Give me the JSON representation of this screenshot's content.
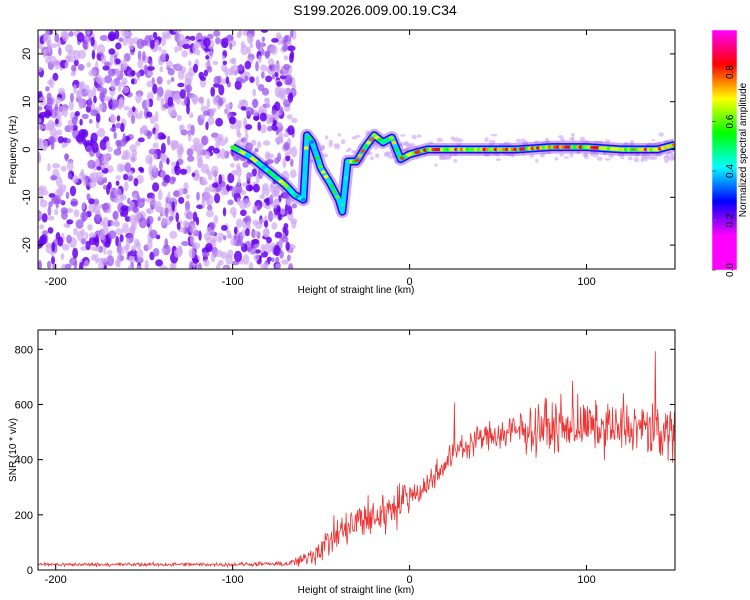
{
  "figure": {
    "title": "S199.2026.009.00.19.C34"
  },
  "chart_data": [
    {
      "type": "heatmap",
      "xlabel": "Height of straight line (km)",
      "ylabel": "Frequency (Hz)",
      "xlim": [
        -210,
        150
      ],
      "ylim": [
        -25,
        25
      ],
      "xticks": [
        -200,
        -100,
        0,
        100
      ],
      "yticks": [
        -20,
        -10,
        0,
        10,
        20
      ],
      "grid": false,
      "colorbar": {
        "label": "Normalized spectral amplitude",
        "range": [
          0,
          0.97
        ],
        "ticks": [
          0.0,
          0.2,
          0.4,
          0.6,
          0.8
        ],
        "colormap": [
          "#ff00ff",
          "#ff00ff",
          "#0000ff",
          "#00ffff",
          "#00ff00",
          "#ffff00",
          "#ff0000",
          "#ff00ff"
        ]
      },
      "ridge": {
        "x": [
          -100,
          -90,
          -80,
          -70,
          -65,
          -60,
          -58,
          -55,
          -50,
          -45,
          -40,
          -38,
          -35,
          -30,
          -25,
          -20,
          -15,
          -10,
          -5,
          0,
          10,
          20,
          40,
          60,
          80,
          100,
          120,
          140,
          150
        ],
        "y": [
          0.5,
          -1.5,
          -4.5,
          -7.5,
          -9.5,
          -10.5,
          3.0,
          1.5,
          -4.0,
          -7.0,
          -10.5,
          -13.0,
          -2.5,
          -2.5,
          0.5,
          3.0,
          1.5,
          2.5,
          -2.0,
          -1.0,
          0.0,
          0.0,
          0.0,
          0.0,
          0.5,
          0.5,
          0.0,
          0.0,
          1.0
        ]
      },
      "noise_region_x": [
        -210,
        -65
      ]
    },
    {
      "type": "line",
      "xlabel": "Height of straight line (km)",
      "ylabel": "SNR (10 * v/v)",
      "xlim": [
        -210,
        150
      ],
      "ylim": [
        0,
        870
      ],
      "xticks": [
        -200,
        -100,
        0,
        100
      ],
      "yticks": [
        0,
        200,
        400,
        600,
        800
      ],
      "grid": false,
      "series": [
        {
          "color": "#ee3333",
          "x": [
            -210,
            -150,
            -100,
            -70,
            -60,
            -50,
            -40,
            -30,
            -20,
            -10,
            0,
            10,
            20,
            30,
            40,
            50,
            60,
            70,
            80,
            90,
            100,
            110,
            120,
            130,
            140,
            150
          ],
          "y": [
            20,
            20,
            20,
            22,
            35,
            80,
            130,
            170,
            190,
            225,
            270,
            310,
            390,
            450,
            480,
            490,
            500,
            510,
            515,
            520,
            520,
            520,
            515,
            510,
            505,
            500
          ],
          "spread": [
            10,
            10,
            10,
            12,
            40,
            80,
            100,
            110,
            120,
            120,
            80,
            80,
            70,
            70,
            75,
            90,
            110,
            120,
            120,
            130,
            130,
            130,
            130,
            140,
            150,
            150
          ]
        }
      ]
    }
  ]
}
